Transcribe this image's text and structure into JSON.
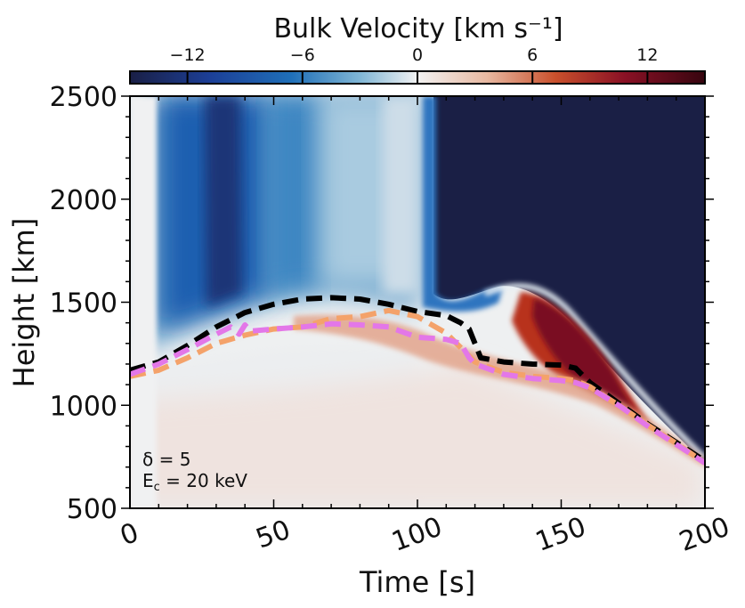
{
  "chart_data": {
    "type": "heatmap",
    "colorbar": {
      "label": "Bulk Velocity [km s⁻¹]",
      "ticks": [
        -12,
        -6,
        0,
        6,
        12
      ],
      "tick_labels": [
        "−12",
        "−6",
        "0",
        "6",
        "12"
      ],
      "range": [
        -15,
        15
      ],
      "colors": [
        "#1a1f45",
        "#1c56b4",
        "#7fb2d4",
        "#f2f2f2",
        "#e9b59f",
        "#c64a2a",
        "#7a0c22",
        "#3a0614"
      ]
    },
    "xlabel": "Time [s]",
    "ylabel": "Height [km]",
    "xlim": [
      0,
      200
    ],
    "ylim": [
      500,
      2500
    ],
    "x_ticks": [
      0,
      50,
      100,
      150,
      200
    ],
    "y_ticks": [
      500,
      1000,
      1500,
      2000,
      2500
    ],
    "annotation": {
      "delta": "δ = 5",
      "ec_prefix": "E",
      "ec_sub": "c",
      "ec_value": " = 20 keV"
    },
    "series": [
      {
        "name": "black-dashed",
        "color": "#000000",
        "x": [
          0,
          10,
          20,
          30,
          40,
          50,
          60,
          70,
          80,
          90,
          100,
          110,
          115,
          118,
          120,
          122,
          130,
          140,
          150,
          155,
          160,
          170,
          180,
          190,
          200
        ],
        "y": [
          1170,
          1210,
          1290,
          1380,
          1450,
          1490,
          1515,
          1522,
          1515,
          1490,
          1455,
          1435,
          1400,
          1370,
          1300,
          1230,
          1210,
          1200,
          1195,
          1180,
          1110,
          1010,
          910,
          820,
          730
        ]
      },
      {
        "name": "orange-dashed",
        "color": "#f4a26a",
        "x": [
          0,
          10,
          20,
          30,
          40,
          50,
          60,
          70,
          80,
          90,
          100,
          110,
          115,
          120,
          130,
          140,
          150,
          155,
          160,
          170,
          180,
          190,
          200
        ],
        "y": [
          1140,
          1170,
          1230,
          1300,
          1340,
          1370,
          1380,
          1420,
          1430,
          1460,
          1430,
          1350,
          1280,
          1210,
          1160,
          1140,
          1130,
          1120,
          1090,
          1000,
          905,
          815,
          720
        ]
      },
      {
        "name": "pink-dashed",
        "color": "#e377e8",
        "x": [
          0,
          10,
          20,
          30,
          35,
          38,
          40,
          42,
          50,
          60,
          70,
          80,
          90,
          100,
          110,
          115,
          118,
          120,
          130,
          140,
          150,
          155,
          160,
          170,
          180,
          190,
          200
        ],
        "y": [
          1150,
          1200,
          1270,
          1345,
          1380,
          1345,
          1390,
          1360,
          1370,
          1380,
          1395,
          1390,
          1380,
          1330,
          1320,
          1300,
          1230,
          1200,
          1150,
          1130,
          1120,
          1110,
          1085,
          1000,
          900,
          810,
          720
        ]
      }
    ]
  }
}
